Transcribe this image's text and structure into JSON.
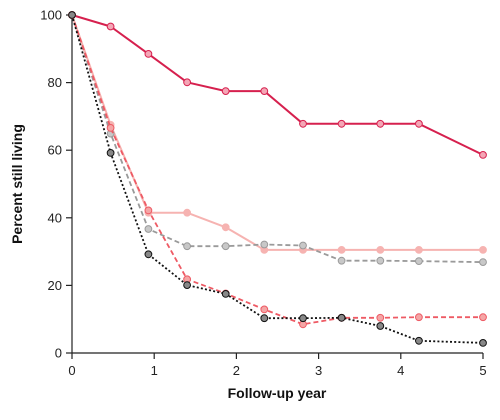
{
  "chart_data": {
    "type": "line",
    "title": "",
    "xlabel": "Follow-up year",
    "ylabel": "Percent still living",
    "xlim": [
      0,
      5
    ],
    "ylim": [
      0,
      100
    ],
    "xticks": [
      0,
      1,
      2,
      3,
      4,
      5
    ],
    "yticks": [
      0,
      20,
      40,
      60,
      80,
      100
    ],
    "grid": false,
    "legend": "none",
    "series": [
      {
        "color": "#d6204e",
        "line_style": "solid",
        "marker_fill": "#f4a6b6",
        "points": [
          [
            0,
            100
          ],
          [
            0.47,
            96.6
          ],
          [
            0.93,
            88.5
          ],
          [
            1.4,
            80.1
          ],
          [
            1.87,
            77.5
          ],
          [
            2.34,
            77.5
          ],
          [
            2.81,
            67.8
          ],
          [
            3.28,
            67.8
          ],
          [
            3.75,
            67.8
          ],
          [
            4.22,
            67.8
          ],
          [
            5,
            58.6
          ]
        ]
      },
      {
        "color": "#f6b3b1",
        "line_style": "solid",
        "marker_fill": "#f6b3b1",
        "points": [
          [
            0,
            100
          ],
          [
            0.47,
            67.5
          ],
          [
            0.93,
            41.5
          ],
          [
            1.4,
            41.5
          ],
          [
            1.87,
            37.2
          ],
          [
            2.34,
            30.5
          ],
          [
            2.81,
            30.5
          ],
          [
            3.28,
            30.5
          ],
          [
            3.75,
            30.5
          ],
          [
            4.22,
            30.5
          ],
          [
            5,
            30.5
          ]
        ]
      },
      {
        "color": "#9a9a9a",
        "line_style": "dashed",
        "marker_fill": "#c8c8c8",
        "points": [
          [
            0,
            100
          ],
          [
            0.47,
            64.9
          ],
          [
            0.93,
            36.7
          ],
          [
            1.4,
            31.6
          ],
          [
            1.87,
            31.6
          ],
          [
            2.34,
            32.1
          ],
          [
            2.81,
            31.8
          ],
          [
            3.28,
            27.3
          ],
          [
            3.75,
            27.3
          ],
          [
            4.22,
            27.2
          ],
          [
            5,
            26.9
          ]
        ]
      },
      {
        "color": "#ee5a64",
        "line_style": "dashed",
        "marker_fill": "#f4a6a6",
        "points": [
          [
            0,
            100
          ],
          [
            0.47,
            66.6
          ],
          [
            0.93,
            42.2
          ],
          [
            1.4,
            21.8
          ],
          [
            1.87,
            17.6
          ],
          [
            2.34,
            12.9
          ],
          [
            2.81,
            8.5
          ],
          [
            3.28,
            10.4
          ],
          [
            3.75,
            10.4
          ],
          [
            4.22,
            10.6
          ],
          [
            5,
            10.6
          ]
        ]
      },
      {
        "color": "#111111",
        "line_style": "dotted",
        "marker_fill": "#888888",
        "points": [
          [
            0,
            100
          ],
          [
            0.47,
            59.2
          ],
          [
            0.93,
            29.2
          ],
          [
            1.4,
            20.1
          ],
          [
            1.87,
            17.5
          ],
          [
            2.34,
            10.3
          ],
          [
            2.81,
            10.3
          ],
          [
            3.28,
            10.4
          ],
          [
            3.75,
            8.0
          ],
          [
            4.22,
            3.6
          ],
          [
            5,
            3.0
          ]
        ]
      }
    ]
  }
}
